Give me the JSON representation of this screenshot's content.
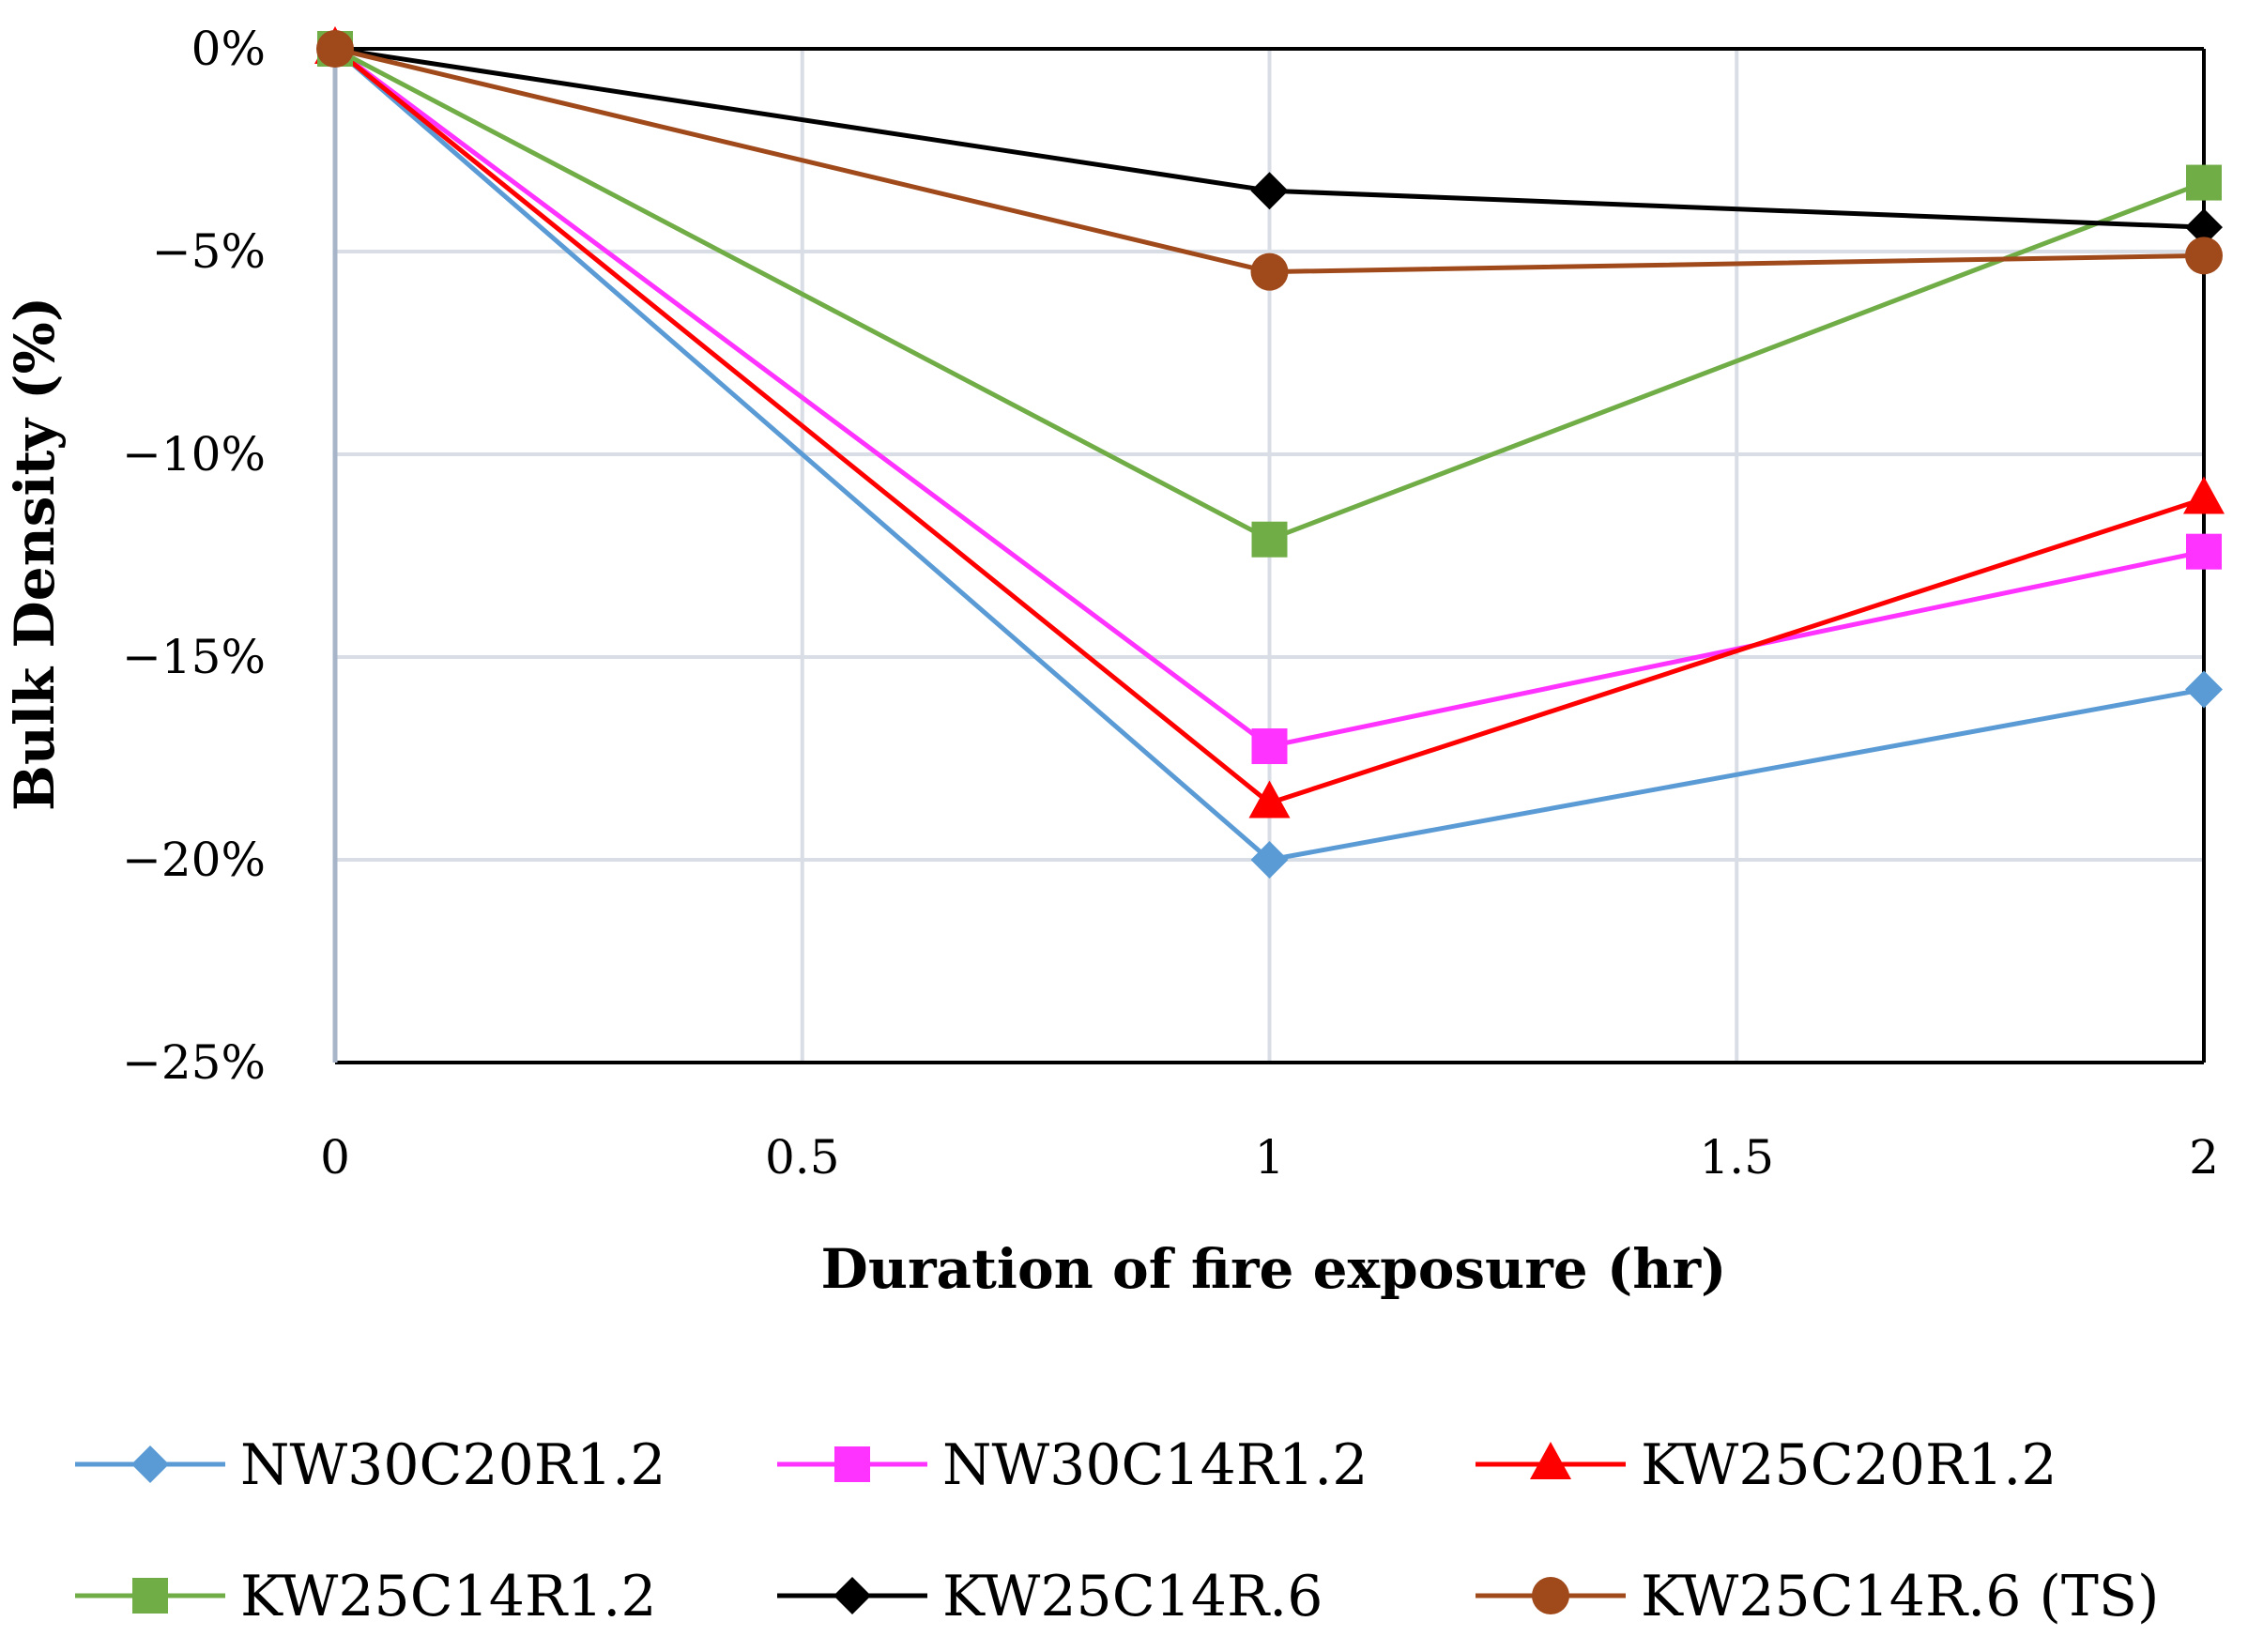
{
  "chart_data": {
    "type": "line",
    "title": "",
    "xlabel": "Duration of fire exposure (hr)",
    "ylabel": "Bulk Density  (%)",
    "x": [
      0,
      1,
      2
    ],
    "xlim": [
      0,
      2
    ],
    "ylim": [
      -25,
      0
    ],
    "x_ticks": [
      0,
      0.5,
      1,
      1.5,
      2
    ],
    "x_tick_labels": [
      "0",
      "0.5",
      "1",
      "1.5",
      "2"
    ],
    "y_ticks": [
      0,
      -5,
      -10,
      -15,
      -20,
      -25
    ],
    "y_tick_labels": [
      "0%",
      "−5%",
      "−10%",
      "−15%",
      "−20%",
      "−25%"
    ],
    "grid": true,
    "legend_position": "bottom",
    "series": [
      {
        "name": "NW30C20R1.2",
        "values": [
          0,
          -20.0,
          -15.8
        ],
        "color": "#5b9bd5",
        "marker": "diamond"
      },
      {
        "name": "NW30C14R1.2",
        "values": [
          0,
          -17.2,
          -12.4
        ],
        "color": "#ff33ff",
        "marker": "square"
      },
      {
        "name": "KW25C20R1.2",
        "values": [
          0,
          -18.6,
          -11.1
        ],
        "color": "#ff0000",
        "marker": "triangle"
      },
      {
        "name": "KW25C14R1.2",
        "values": [
          0,
          -12.1,
          -3.3
        ],
        "color": "#70ad47",
        "marker": "square"
      },
      {
        "name": "KW25C14R.6",
        "values": [
          0,
          -3.5,
          -4.4
        ],
        "color": "#000000",
        "marker": "diamond"
      },
      {
        "name": "KW25C14R.6 (TS)",
        "values": [
          0,
          -5.5,
          -5.1
        ],
        "color": "#a0491b",
        "marker": "circle"
      }
    ]
  }
}
